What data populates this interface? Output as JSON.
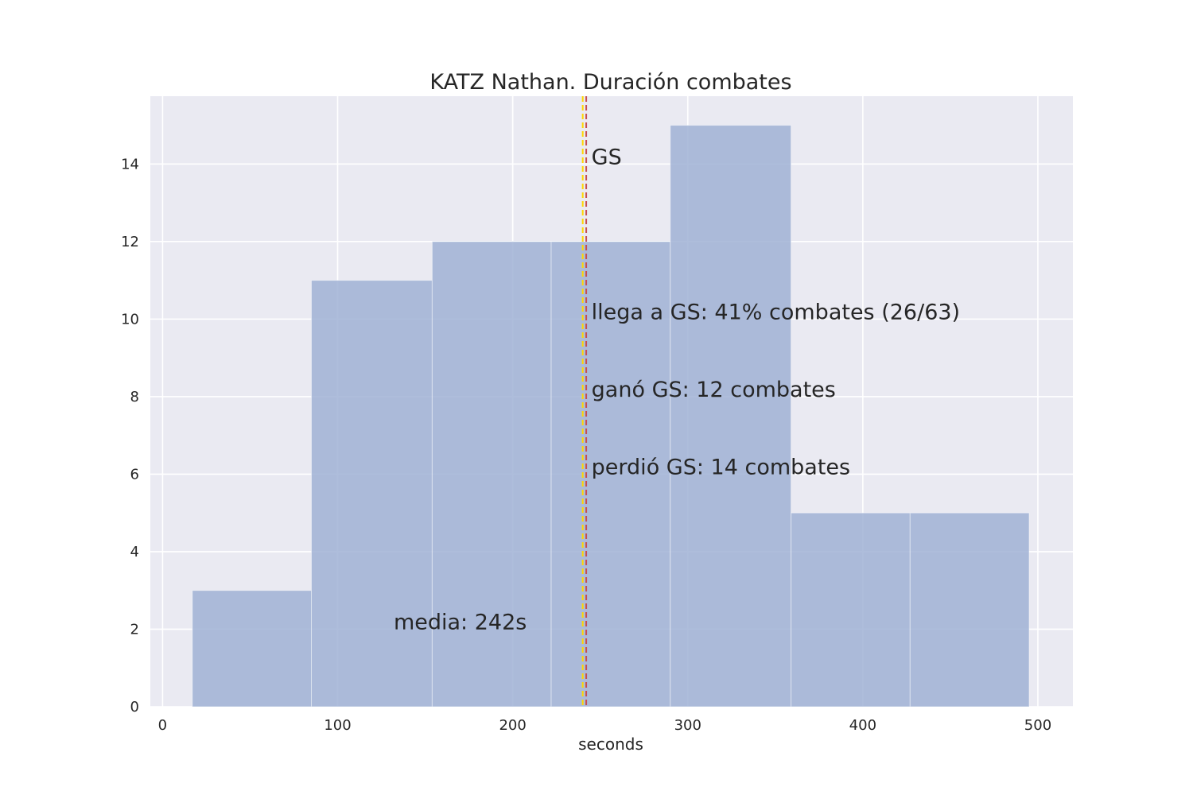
{
  "chart_data": {
    "type": "bar",
    "title": "KATZ Nathan. Duración combates",
    "xlabel": "seconds",
    "ylabel": "",
    "xlim": [
      -7,
      520
    ],
    "ylim": [
      0,
      15.75
    ],
    "xticks": [
      0,
      100,
      200,
      300,
      400,
      500
    ],
    "yticks": [
      0,
      2,
      4,
      6,
      8,
      10,
      12,
      14
    ],
    "grid": true,
    "bins": [
      {
        "start": 17,
        "end": 85,
        "count": 3
      },
      {
        "start": 85,
        "end": 154,
        "count": 11
      },
      {
        "start": 154,
        "end": 222,
        "count": 12
      },
      {
        "start": 222,
        "end": 290,
        "count": 12
      },
      {
        "start": 290,
        "end": 359,
        "count": 15
      },
      {
        "start": 359,
        "end": 427,
        "count": 5
      },
      {
        "start": 427,
        "end": 495,
        "count": 5
      }
    ],
    "bar_color": "#a0b2d5",
    "vlines": [
      {
        "x": 240,
        "color": "#ffd700",
        "style": "dashed",
        "label": "GS"
      },
      {
        "x": 242,
        "color": "#c44e52",
        "style": "dashed",
        "label": "media"
      }
    ],
    "annotations": [
      {
        "text": "GS",
        "x": 245,
        "y": 14.0,
        "color": "#262626"
      },
      {
        "text": "llega a GS: 41% combates (26/63)",
        "x": 245,
        "y": 10.0,
        "color": "#262626"
      },
      {
        "text": "ganó GS: 12 combates",
        "x": 245,
        "y": 8.0,
        "color": "#262626"
      },
      {
        "text": "perdió GS: 14 combates",
        "x": 245,
        "y": 6.0,
        "color": "#262626"
      },
      {
        "text": "media: 242s",
        "x": 132,
        "y": 2.0,
        "color": "#c44e52"
      }
    ],
    "background_color": "#eaeaf2",
    "grid_color": "#ffffff"
  }
}
